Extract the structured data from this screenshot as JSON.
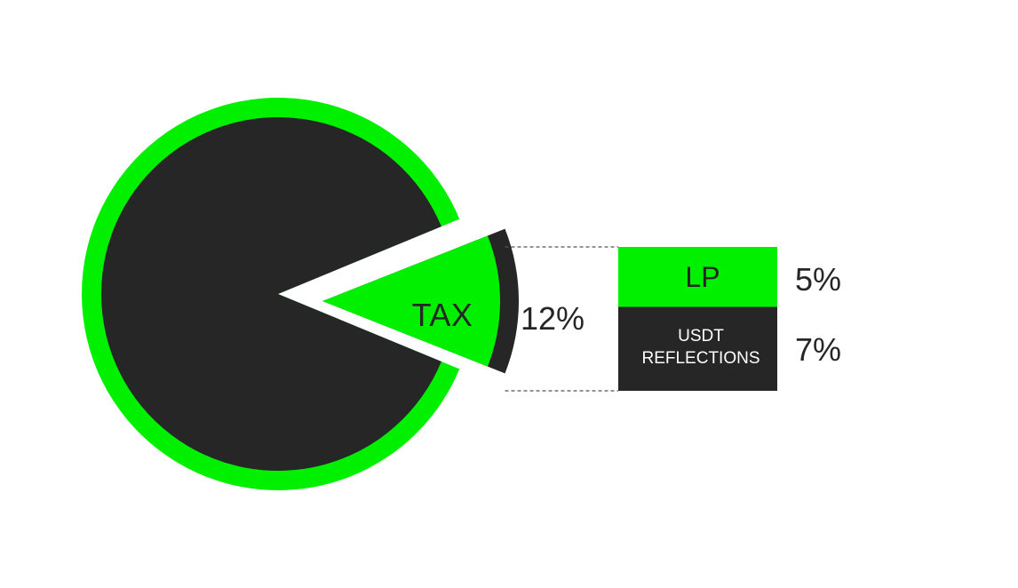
{
  "chart_data": {
    "type": "pie",
    "slices": [
      {
        "label": "",
        "value": 88
      },
      {
        "label": "TAX",
        "value": 12,
        "exploded": true
      }
    ],
    "tax": {
      "label": "TAX",
      "total_label": "12%",
      "breakdown": [
        {
          "label_lines": [
            "LP"
          ],
          "value": 5,
          "value_label": "5%",
          "color": "#00F000"
        },
        {
          "label_lines": [
            "USDT",
            "REFLECTIONS"
          ],
          "value": 7,
          "value_label": "7%",
          "color": "#262626"
        }
      ]
    },
    "colors": {
      "pie_fill": "#262626",
      "pie_ring": "#00F000",
      "tax_fill": "#00F000",
      "tax_rim": "#262626",
      "connector": "#555555"
    }
  }
}
